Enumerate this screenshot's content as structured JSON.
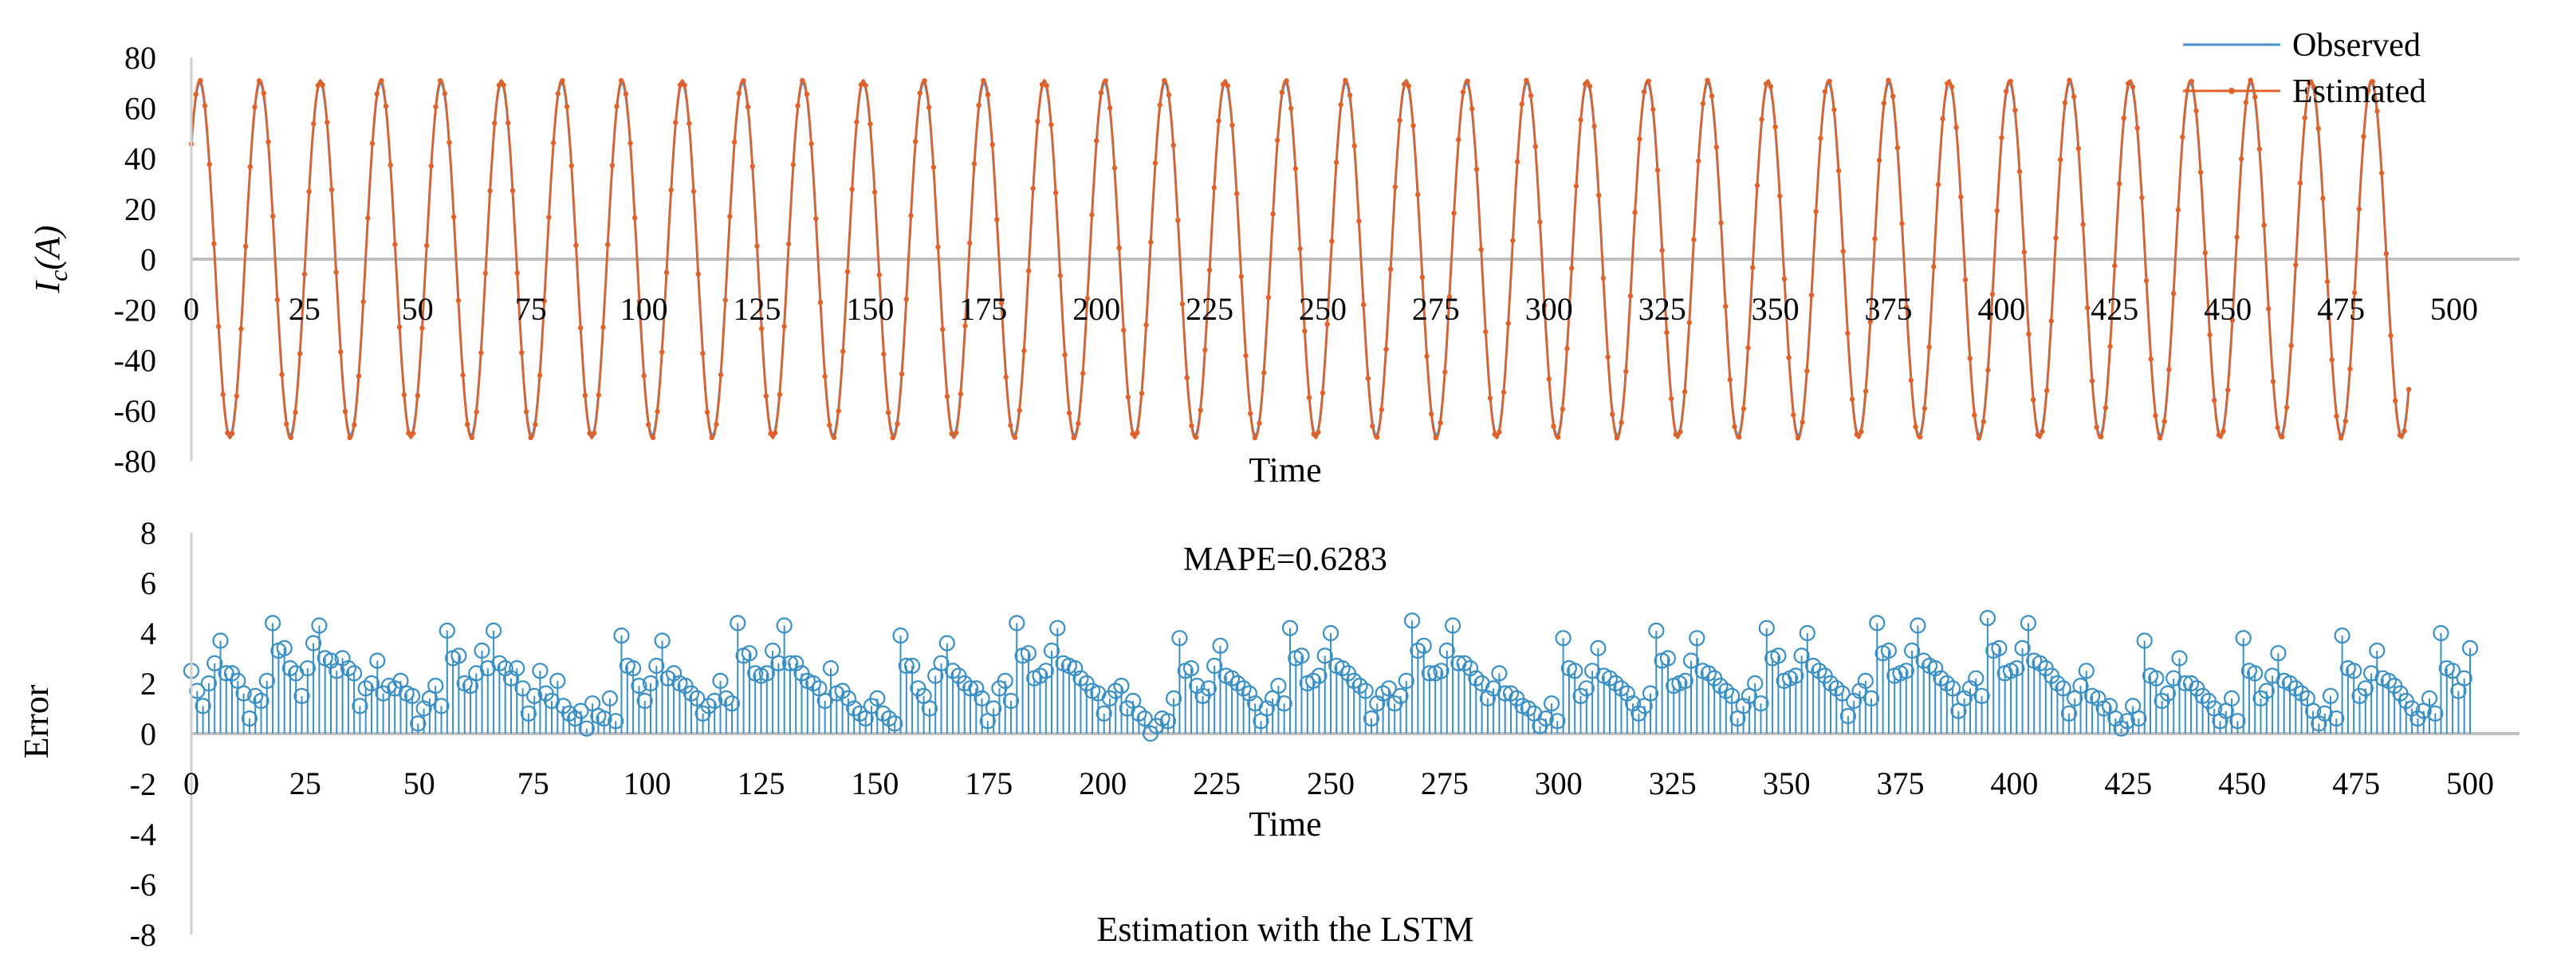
{
  "caption": "Estimation with the LSTM",
  "chart_data": [
    {
      "id": "current",
      "type": "line",
      "xlabel": "Time",
      "ylabel": "I_c(A)",
      "ylabel_main": "I",
      "ylabel_sub": "c",
      "ylabel_unit": "(A)",
      "xlim": [
        0,
        500
      ],
      "ylim": [
        -80,
        80
      ],
      "xticks": [
        0,
        25,
        50,
        75,
        100,
        125,
        150,
        175,
        200,
        225,
        250,
        275,
        300,
        325,
        350,
        375,
        400,
        425,
        450,
        475,
        500
      ],
      "yticks": [
        80,
        60,
        40,
        20,
        0,
        -20,
        -40,
        -60,
        -80
      ],
      "x_end": 490,
      "legend": [
        "Observed",
        "Estimated"
      ],
      "series": [
        {
          "name": "Observed",
          "color": "#4a90c8",
          "amplitude": 70,
          "period": 13.33,
          "phase_deg": 40,
          "marker": "none"
        },
        {
          "name": "Estimated",
          "color": "#e0622a",
          "amplitude": 71,
          "period": 13.33,
          "phase_deg": 40,
          "marker": "dot",
          "marker_step": 1
        }
      ]
    },
    {
      "id": "error",
      "type": "stem",
      "xlabel": "Time",
      "ylabel": "Error",
      "annotation": "MAPE=0.6283",
      "xlim": [
        0,
        500
      ],
      "ylim": [
        -8,
        8
      ],
      "xticks": [
        0,
        25,
        50,
        75,
        100,
        125,
        150,
        175,
        200,
        225,
        250,
        275,
        300,
        325,
        350,
        375,
        400,
        425,
        450,
        475,
        500
      ],
      "yticks": [
        8,
        6,
        4,
        2,
        0,
        -2,
        -4,
        -6,
        -8
      ],
      "color": "#3a8fc4",
      "values": [
        2.5,
        1.7,
        1.1,
        2.0,
        2.8,
        3.7,
        2.4,
        2.4,
        2.1,
        1.6,
        0.6,
        1.5,
        1.3,
        2.1,
        4.4,
        3.3,
        3.4,
        2.6,
        2.4,
        1.5,
        2.6,
        3.6,
        4.3,
        3.0,
        2.9,
        2.5,
        3.0,
        2.6,
        2.4,
        1.1,
        1.8,
        2.0,
        2.9,
        1.6,
        1.9,
        1.8,
        2.1,
        1.6,
        1.5,
        0.4,
        1.0,
        1.4,
        1.9,
        1.1,
        4.1,
        3.0,
        3.1,
        2.0,
        1.9,
        2.4,
        3.3,
        2.6,
        4.1,
        2.8,
        2.6,
        2.2,
        2.6,
        1.8,
        0.8,
        1.5,
        2.5,
        1.6,
        1.3,
        2.1,
        1.1,
        0.8,
        0.6,
        0.9,
        0.2,
        1.2,
        0.7,
        0.6,
        1.4,
        0.5,
        3.9,
        2.7,
        2.6,
        1.9,
        1.3,
        2.0,
        2.7,
        3.7,
        2.2,
        2.4,
        2.0,
        1.9,
        1.6,
        1.4,
        0.8,
        1.1,
        1.3,
        2.1,
        1.4,
        1.2,
        4.4,
        3.1,
        3.2,
        2.4,
        2.3,
        2.4,
        3.3,
        2.8,
        4.3,
        2.8,
        2.8,
        2.4,
        2.1,
        2.0,
        1.8,
        1.3,
        2.6,
        1.6,
        1.7,
        1.4,
        1.0,
        0.8,
        0.6,
        1.1,
        1.4,
        0.8,
        0.6,
        0.4,
        3.9,
        2.7,
        2.7,
        1.8,
        1.5,
        1.0,
        2.3,
        2.8,
        3.6,
        2.5,
        2.3,
        2.0,
        1.8,
        1.8,
        1.4,
        0.5,
        1.0,
        1.8,
        2.1,
        1.3,
        4.4,
        3.1,
        3.2,
        2.2,
        2.3,
        2.5,
        3.3,
        4.2,
        2.8,
        2.7,
        2.6,
        2.2,
        2.0,
        1.7,
        1.6,
        0.8,
        1.4,
        1.7,
        1.9,
        1.0,
        1.3,
        0.8,
        0.6,
        0.0,
        0.3,
        0.6,
        0.5,
        1.4,
        3.8,
        2.5,
        2.6,
        1.9,
        1.5,
        1.8,
        2.7,
        3.5,
        2.3,
        2.2,
        2.0,
        1.8,
        1.6,
        1.2,
        0.5,
        1.0,
        1.4,
        1.9,
        1.2,
        4.2,
        3.0,
        3.1,
        2.0,
        2.1,
        2.3,
        3.1,
        4.0,
        2.7,
        2.6,
        2.4,
        2.1,
        1.9,
        1.7,
        0.6,
        1.2,
        1.6,
        1.8,
        1.2,
        1.5,
        2.1,
        4.5,
        3.3,
        3.5,
        2.4,
        2.4,
        2.5,
        3.3,
        4.3,
        2.8,
        2.8,
        2.6,
        2.2,
        2.0,
        1.4,
        1.8,
        2.4,
        1.6,
        1.6,
        1.4,
        1.1,
        1.0,
        0.8,
        0.3,
        0.6,
        1.2,
        0.5,
        3.8,
        2.6,
        2.5,
        1.5,
        1.8,
        2.5,
        3.4,
        2.3,
        2.2,
        2.0,
        1.8,
        1.6,
        1.2,
        0.8,
        1.1,
        1.6,
        4.1,
        2.9,
        3.0,
        1.9,
        2.0,
        2.1,
        2.9,
        3.8,
        2.5,
        2.4,
        2.2,
        1.9,
        1.7,
        1.5,
        0.6,
        1.1,
        1.5,
        2.0,
        1.2,
        4.2,
        3.0,
        3.1,
        2.1,
        2.2,
        2.3,
        3.1,
        4.0,
        2.7,
        2.5,
        2.3,
        2.0,
        1.8,
        1.6,
        0.7,
        1.3,
        1.7,
        2.1,
        1.4,
        4.4,
        3.2,
        3.3,
        2.3,
        2.4,
        2.5,
        3.3,
        4.3,
        2.9,
        2.7,
        2.6,
        2.2,
        2.0,
        1.8,
        0.9,
        1.4,
        1.8,
        2.2,
        1.5,
        4.6,
        3.3,
        3.4,
        2.4,
        2.5,
        2.6,
        3.4,
        4.4,
        2.9,
        2.8,
        2.6,
        2.3,
        2.0,
        1.8,
        0.8,
        1.4,
        1.9,
        2.5,
        1.5,
        1.4,
        1.0,
        1.1,
        0.6,
        0.2,
        0.5,
        1.1,
        0.6,
        3.7,
        2.3,
        2.2,
        1.3,
        1.6,
        2.2,
        3.0,
        2.0,
        2.0,
        1.8,
        1.5,
        1.3,
        1.0,
        0.5,
        0.9,
        1.4,
        0.5,
        3.8,
        2.5,
        2.4,
        1.4,
        1.7,
        2.3,
        3.2,
        2.1,
        2.0,
        1.8,
        1.6,
        1.4,
        0.9,
        0.4,
        0.8,
        1.5,
        0.6,
        3.9,
        2.6,
        2.5,
        1.5,
        1.8,
        2.4,
        3.3,
        2.2,
        2.1,
        1.9,
        1.6,
        1.3,
        1.0,
        0.6,
        0.9,
        1.4,
        0.8,
        4.0,
        2.6,
        2.5,
        1.7,
        2.2,
        3.4
      ]
    }
  ]
}
